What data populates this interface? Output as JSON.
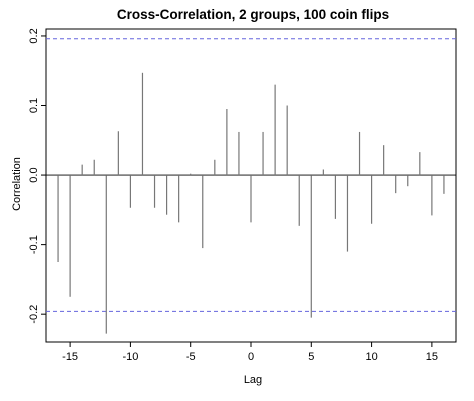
{
  "chart_data": {
    "type": "bar",
    "title": "Cross-Correlation, 2 groups, 100 coin flips",
    "xlabel": "Lag",
    "ylabel": "Correlation",
    "xlim": [
      -17,
      17
    ],
    "ylim": [
      -0.24,
      0.21
    ],
    "x_ticks": [
      -15,
      -10,
      -5,
      0,
      5,
      10,
      15
    ],
    "y_ticks": [
      -0.2,
      -0.1,
      0.0,
      0.1,
      0.2
    ],
    "x_tick_labels": [
      "-15",
      "-10",
      "-5",
      "0",
      "5",
      "10",
      "15"
    ],
    "y_tick_labels": [
      "-0.2",
      "-0.1",
      "0.0",
      "0.1",
      "0.2"
    ],
    "confidence_limits": [
      0.196,
      -0.196
    ],
    "lags": [
      -16,
      -15,
      -14,
      -13,
      -12,
      -11,
      -10,
      -9,
      -8,
      -7,
      -6,
      -5,
      -4,
      -3,
      -2,
      -1,
      0,
      1,
      2,
      3,
      4,
      5,
      6,
      7,
      8,
      9,
      10,
      11,
      12,
      13,
      14,
      15,
      16
    ],
    "values": [
      -0.125,
      -0.175,
      0.015,
      0.022,
      -0.228,
      0.063,
      -0.047,
      0.147,
      -0.047,
      -0.057,
      -0.068,
      0.002,
      -0.105,
      0.022,
      0.095,
      0.062,
      -0.068,
      0.062,
      0.13,
      0.1,
      -0.073,
      -0.205,
      0.008,
      -0.063,
      -0.11,
      0.062,
      -0.07,
      0.043,
      -0.026,
      -0.016,
      0.033,
      -0.058,
      -0.027
    ],
    "grid": false,
    "colors": {
      "bars": "#777777",
      "confidence_line": "#6666dd",
      "axes": "#000000"
    }
  }
}
